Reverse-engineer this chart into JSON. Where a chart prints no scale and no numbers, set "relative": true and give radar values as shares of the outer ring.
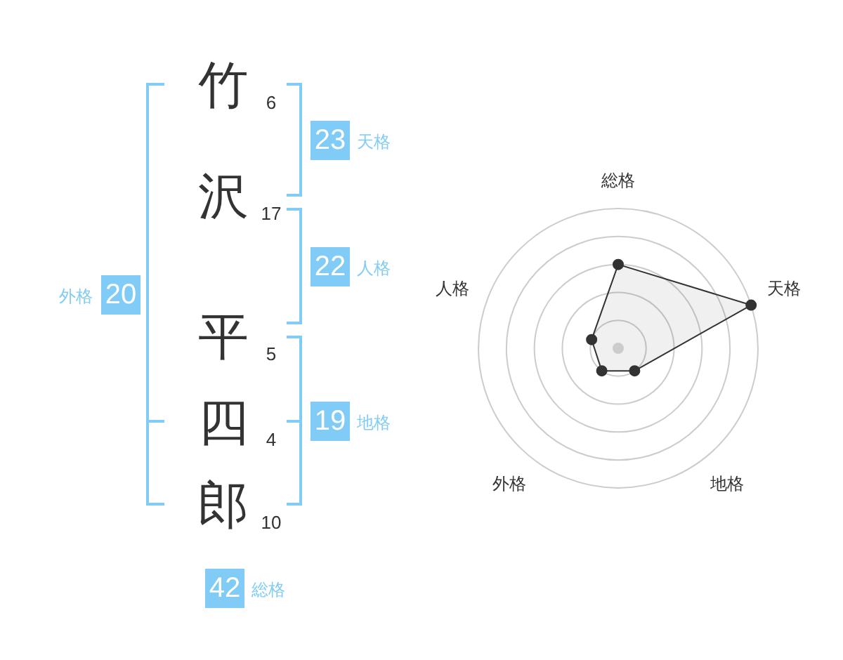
{
  "chart_data": [
    {
      "type": "other",
      "categories": [
        "竹",
        "沢",
        "平",
        "四",
        "郎"
      ],
      "values": [
        6,
        17,
        5,
        4,
        10
      ],
      "data_labels": true,
      "color": "#80ccf6",
      "annotations": [
        "23",
        "天格",
        "22",
        "人格",
        "19",
        "地格",
        "20",
        "外格",
        "42",
        "総格"
      ]
    },
    {
      "type": "radar",
      "categories": [
        "総格",
        "天格",
        "地格",
        "外格",
        "人格"
      ],
      "series": [
        {
          "color": "#333333",
          "values": [
            0.6,
            1,
            0.2,
            0.2,
            0.2
          ]
        }
      ],
      "relative": true,
      "grid": true,
      "marker": "circle"
    }
  ]
}
